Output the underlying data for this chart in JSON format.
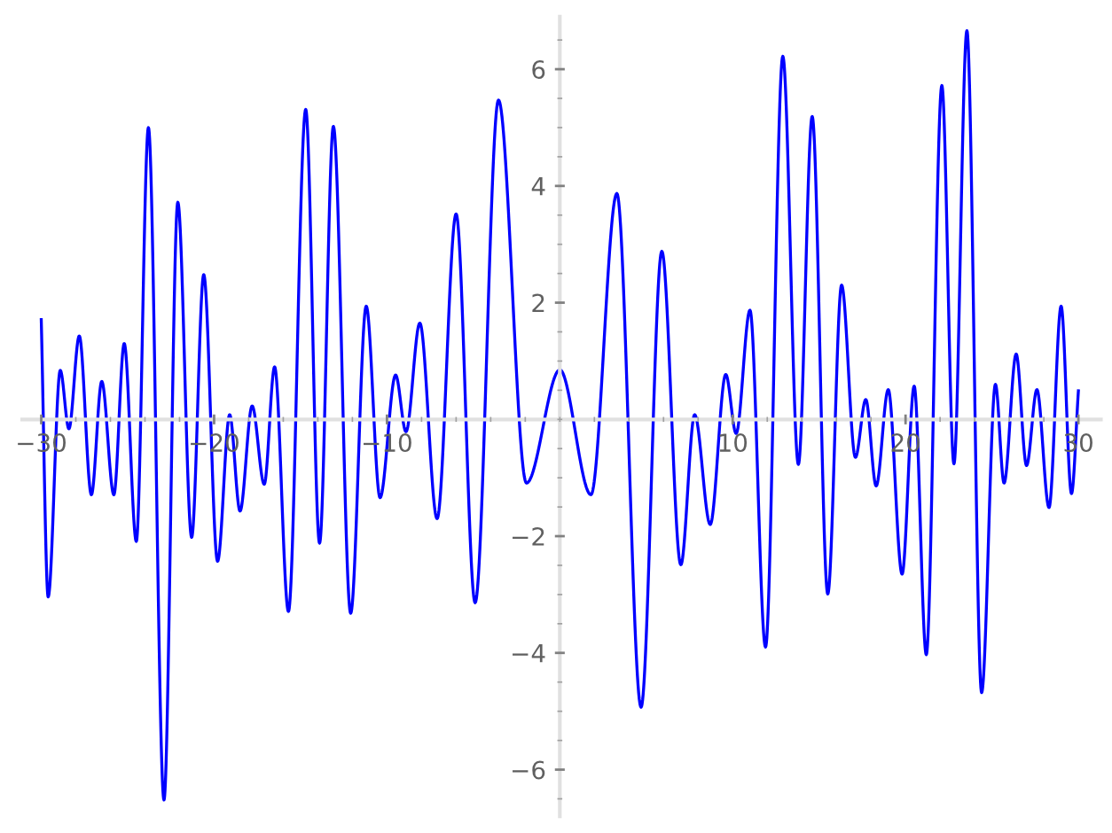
{
  "chart_data": {
    "type": "line",
    "marker": "none",
    "line_style": "solid",
    "grid": false,
    "xlim": [
      -31.1,
      31.3
    ],
    "ylim": [
      -6.8,
      6.9
    ],
    "xticks": [
      {
        "value": -30,
        "label": "−30"
      },
      {
        "value": -20,
        "label": "−20"
      },
      {
        "value": -10,
        "label": "−10"
      },
      {
        "value": 10,
        "label": "10"
      },
      {
        "value": 20,
        "label": "20"
      },
      {
        "value": 30,
        "label": "30"
      }
    ],
    "yticks": [
      {
        "value": -6,
        "label": "−6"
      },
      {
        "value": -4,
        "label": "−4"
      },
      {
        "value": -2,
        "label": "−2"
      },
      {
        "value": 2,
        "label": "2"
      },
      {
        "value": 4,
        "label": "4"
      },
      {
        "value": 6,
        "label": "6"
      }
    ],
    "series": [
      {
        "color": "#0000ff",
        "x": [
          -30.0,
          -29.6,
          -28.9,
          -28.4,
          -27.8,
          -27.1,
          -26.5,
          -25.8,
          -25.2,
          -24.5,
          -23.8,
          -22.9,
          -22.1,
          -21.3,
          -20.6,
          -19.8,
          -19.1,
          -18.5,
          -17.8,
          -17.1,
          -16.5,
          -15.7,
          -14.7,
          -13.9,
          -13.1,
          -12.1,
          -11.2,
          -10.4,
          -9.5,
          -8.9,
          -8.1,
          -7.1,
          -6.0,
          -4.9,
          -3.55,
          -1.93,
          0.0,
          1.8,
          3.3,
          4.7,
          5.9,
          7.0,
          7.8,
          8.7,
          9.6,
          10.2,
          11.0,
          11.9,
          12.9,
          13.8,
          14.6,
          15.5,
          16.3,
          17.1,
          17.7,
          18.3,
          19.0,
          19.8,
          20.5,
          21.2,
          22.1,
          22.8,
          23.55,
          24.4,
          25.2,
          25.7,
          26.4,
          27.0,
          27.6,
          28.3,
          29.0,
          29.6,
          30.0
        ],
        "values": [
          1.71,
          -3.04,
          0.84,
          -0.16,
          1.43,
          -1.29,
          0.65,
          -1.29,
          1.3,
          -2.09,
          5.0,
          -6.52,
          3.72,
          -2.02,
          2.48,
          -2.43,
          0.08,
          -1.57,
          0.23,
          -1.11,
          0.9,
          -3.29,
          5.31,
          -2.12,
          5.02,
          -3.32,
          1.94,
          -1.34,
          0.76,
          -0.21,
          1.65,
          -1.7,
          3.52,
          -3.14,
          5.47,
          -1.09,
          0.85,
          -1.29,
          3.87,
          -4.93,
          2.88,
          -2.49,
          0.08,
          -1.8,
          0.77,
          -0.24,
          1.87,
          -3.9,
          6.22,
          -0.77,
          5.19,
          -2.99,
          2.3,
          -0.65,
          0.34,
          -1.14,
          0.51,
          -2.65,
          0.57,
          -4.03,
          5.72,
          -0.76,
          6.66,
          -4.68,
          0.6,
          -1.09,
          1.12,
          -0.79,
          0.51,
          -1.51,
          1.94,
          -1.27,
          0.49
        ]
      }
    ]
  }
}
